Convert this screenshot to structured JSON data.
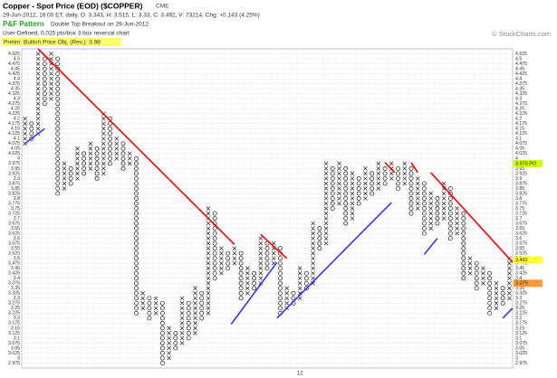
{
  "chart_data": {
    "type": "point-and-figure",
    "title": "Copper - Spot Price (EOD) ($COPPER)",
    "exchange": "CME",
    "info_line": "29-Jun-2012, 16:00 ET, daily, O: 3.343, H: 3.515, L: 3.33, C: 3.492, V: 73214, Chg: +0.143 (4.25%)",
    "pattern_label": "P&F Pattern",
    "pattern_text": "Double Top Breakout on 29-Jun-2012",
    "settings_line": "User-Defined, 0.025 pts/box 3 box reversal chart",
    "price_objective": "Prelim. Bullish Price Obj. (Rev.): 3.98",
    "watermark": "© StockCharts.com",
    "box_size": 0.025,
    "ylim": [
      2.95,
      4.55
    ],
    "yticks": [
      2.975,
      3,
      3.025,
      3.05,
      3.075,
      3.1,
      3.125,
      3.15,
      3.175,
      3.2,
      3.225,
      3.25,
      3.275,
      3.3,
      3.325,
      3.35,
      3.375,
      3.4,
      3.425,
      3.45,
      3.475,
      3.5,
      3.525,
      3.55,
      3.575,
      3.6,
      3.625,
      3.65,
      3.675,
      3.7,
      3.725,
      3.75,
      3.775,
      3.8,
      3.825,
      3.85,
      3.875,
      3.9,
      3.925,
      3.95,
      3.975,
      4,
      4.025,
      4.05,
      4.075,
      4.1,
      4.125,
      4.15,
      4.175,
      4.2,
      4.225,
      4.25,
      4.275,
      4.3,
      4.325,
      4.35,
      4.375,
      4.4,
      4.425,
      4.45,
      4.475,
      4.5,
      4.525
    ],
    "grid": true,
    "columns": [
      {
        "kind": "X",
        "low": 4.075,
        "high": 4.2
      },
      {
        "kind": "O",
        "low": 4.1,
        "high": 4.175
      },
      {
        "kind": "X",
        "low": 4.125,
        "high": 4.525
      },
      {
        "kind": "O",
        "low": 4.275,
        "high": 4.5
      },
      {
        "kind": "X",
        "low": 4.3,
        "high": 4.525
      },
      {
        "kind": "O",
        "low": 3.825,
        "high": 4.5
      },
      {
        "kind": "X",
        "low": 3.85,
        "high": 3.975
      },
      {
        "kind": "O",
        "low": 3.875,
        "high": 3.95
      },
      {
        "kind": "X",
        "low": 3.9,
        "high": 4.05
      },
      {
        "kind": "O",
        "low": 3.925,
        "high": 4.025
      },
      {
        "kind": "X",
        "low": 3.95,
        "high": 4.075
      },
      {
        "kind": "O",
        "low": 3.9,
        "high": 4.05
      },
      {
        "kind": "X",
        "low": 3.925,
        "high": 4.225
      },
      {
        "kind": "O",
        "low": 3.975,
        "high": 4.2
      },
      {
        "kind": "X",
        "low": 4.0,
        "high": 4.1
      },
      {
        "kind": "O",
        "low": 3.95,
        "high": 4.075
      },
      {
        "kind": "X",
        "low": 3.975,
        "high": 4.025
      },
      {
        "kind": "O",
        "low": 3.225,
        "high": 4.0
      },
      {
        "kind": "X",
        "low": 3.25,
        "high": 3.325
      },
      {
        "kind": "O",
        "low": 3.2,
        "high": 3.3
      },
      {
        "kind": "X",
        "low": 3.225,
        "high": 3.3
      },
      {
        "kind": "O",
        "low": 2.975,
        "high": 3.275
      },
      {
        "kind": "X",
        "low": 3.0,
        "high": 3.15
      },
      {
        "kind": "O",
        "low": 3.05,
        "high": 3.125
      },
      {
        "kind": "X",
        "low": 3.075,
        "high": 3.3
      },
      {
        "kind": "O",
        "low": 3.1,
        "high": 3.275
      },
      {
        "kind": "X",
        "low": 3.125,
        "high": 3.35
      },
      {
        "kind": "O",
        "low": 3.2,
        "high": 3.325
      },
      {
        "kind": "X",
        "low": 3.225,
        "high": 3.75
      },
      {
        "kind": "O",
        "low": 3.4,
        "high": 3.725
      },
      {
        "kind": "X",
        "low": 3.425,
        "high": 3.55
      },
      {
        "kind": "O",
        "low": 3.45,
        "high": 3.525
      },
      {
        "kind": "X",
        "low": 3.475,
        "high": 3.55
      },
      {
        "kind": "O",
        "low": 3.3,
        "high": 3.525
      },
      {
        "kind": "X",
        "low": 3.325,
        "high": 3.45
      },
      {
        "kind": "O",
        "low": 3.35,
        "high": 3.425
      },
      {
        "kind": "X",
        "low": 3.375,
        "high": 3.6
      },
      {
        "kind": "O",
        "low": 3.45,
        "high": 3.575
      },
      {
        "kind": "X",
        "low": 3.475,
        "high": 3.575
      },
      {
        "kind": "O",
        "low": 3.225,
        "high": 3.55
      },
      {
        "kind": "X",
        "low": 3.25,
        "high": 3.35
      },
      {
        "kind": "O",
        "low": 3.275,
        "high": 3.325
      },
      {
        "kind": "X",
        "low": 3.3,
        "high": 3.45
      },
      {
        "kind": "O",
        "low": 3.35,
        "high": 3.425
      },
      {
        "kind": "X",
        "low": 3.375,
        "high": 3.675
      },
      {
        "kind": "O",
        "low": 3.55,
        "high": 3.65
      },
      {
        "kind": "X",
        "low": 3.575,
        "high": 3.975
      },
      {
        "kind": "O",
        "low": 3.75,
        "high": 3.95
      },
      {
        "kind": "X",
        "low": 3.775,
        "high": 3.975
      },
      {
        "kind": "O",
        "low": 3.675,
        "high": 3.95
      },
      {
        "kind": "X",
        "low": 3.7,
        "high": 3.925
      },
      {
        "kind": "O",
        "low": 3.775,
        "high": 3.9
      },
      {
        "kind": "X",
        "low": 3.8,
        "high": 3.95
      },
      {
        "kind": "O",
        "low": 3.825,
        "high": 3.925
      },
      {
        "kind": "X",
        "low": 3.85,
        "high": 3.975
      },
      {
        "kind": "O",
        "low": 3.875,
        "high": 3.95
      },
      {
        "kind": "X",
        "low": 3.9,
        "high": 3.975
      },
      {
        "kind": "O",
        "low": 3.85,
        "high": 3.95
      },
      {
        "kind": "X",
        "low": 3.875,
        "high": 3.975
      },
      {
        "kind": "O",
        "low": 3.725,
        "high": 3.95
      },
      {
        "kind": "X",
        "low": 3.75,
        "high": 3.9
      },
      {
        "kind": "O",
        "low": 3.625,
        "high": 3.875
      },
      {
        "kind": "X",
        "low": 3.65,
        "high": 3.825
      },
      {
        "kind": "O",
        "low": 3.675,
        "high": 3.8
      },
      {
        "kind": "X",
        "low": 3.7,
        "high": 3.875
      },
      {
        "kind": "O",
        "low": 3.6,
        "high": 3.85
      },
      {
        "kind": "X",
        "low": 3.625,
        "high": 3.75
      },
      {
        "kind": "O",
        "low": 3.4,
        "high": 3.725
      },
      {
        "kind": "X",
        "low": 3.425,
        "high": 3.5
      },
      {
        "kind": "O",
        "low": 3.35,
        "high": 3.475
      },
      {
        "kind": "X",
        "low": 3.375,
        "high": 3.45
      },
      {
        "kind": "O",
        "low": 3.225,
        "high": 3.425
      },
      {
        "kind": "X",
        "low": 3.25,
        "high": 3.375
      },
      {
        "kind": "O",
        "low": 3.275,
        "high": 3.35
      },
      {
        "kind": "X",
        "low": 3.3,
        "high": 3.5
      }
    ],
    "trendlines": [
      {
        "color": "#3333ff",
        "from": [
          0,
          4.075
        ],
        "to": [
          3,
          4.15
        ]
      },
      {
        "color": "#ff0000",
        "from": [
          2,
          4.55
        ],
        "to": [
          32,
          3.57
        ]
      },
      {
        "color": "#ff0000",
        "from": [
          36,
          3.62
        ],
        "to": [
          40,
          3.5
        ]
      },
      {
        "color": "#3333ff",
        "from": [
          31.5,
          3.17
        ],
        "to": [
          38.5,
          3.48
        ]
      },
      {
        "color": "#3333ff",
        "from": [
          38.5,
          3.2
        ],
        "to": [
          56,
          3.78
        ]
      },
      {
        "color": "#ff0000",
        "from": [
          55,
          3.98
        ],
        "to": [
          56.5,
          3.93
        ]
      },
      {
        "color": "#ff0000",
        "from": [
          59,
          3.98
        ],
        "to": [
          60,
          3.93
        ]
      },
      {
        "color": "#3333ff",
        "from": [
          61,
          3.52
        ],
        "to": [
          63,
          3.6
        ]
      },
      {
        "color": "#ff0000",
        "from": [
          62,
          3.93
        ],
        "to": [
          74.5,
          3.48
        ]
      },
      {
        "color": "#3333ff",
        "from": [
          73,
          3.2
        ],
        "to": [
          74.5,
          3.25
        ]
      }
    ],
    "year_markers": [
      {
        "column": 42,
        "label": "12"
      }
    ],
    "price_labels": [
      {
        "value": 3.975,
        "label": "3.975 PO",
        "color": "#ccff00"
      },
      {
        "value": 3.492,
        "label": "3.492",
        "color": "#ffff33"
      },
      {
        "value": 3.375,
        "label": "3.375",
        "color": "#ff9933"
      }
    ]
  }
}
